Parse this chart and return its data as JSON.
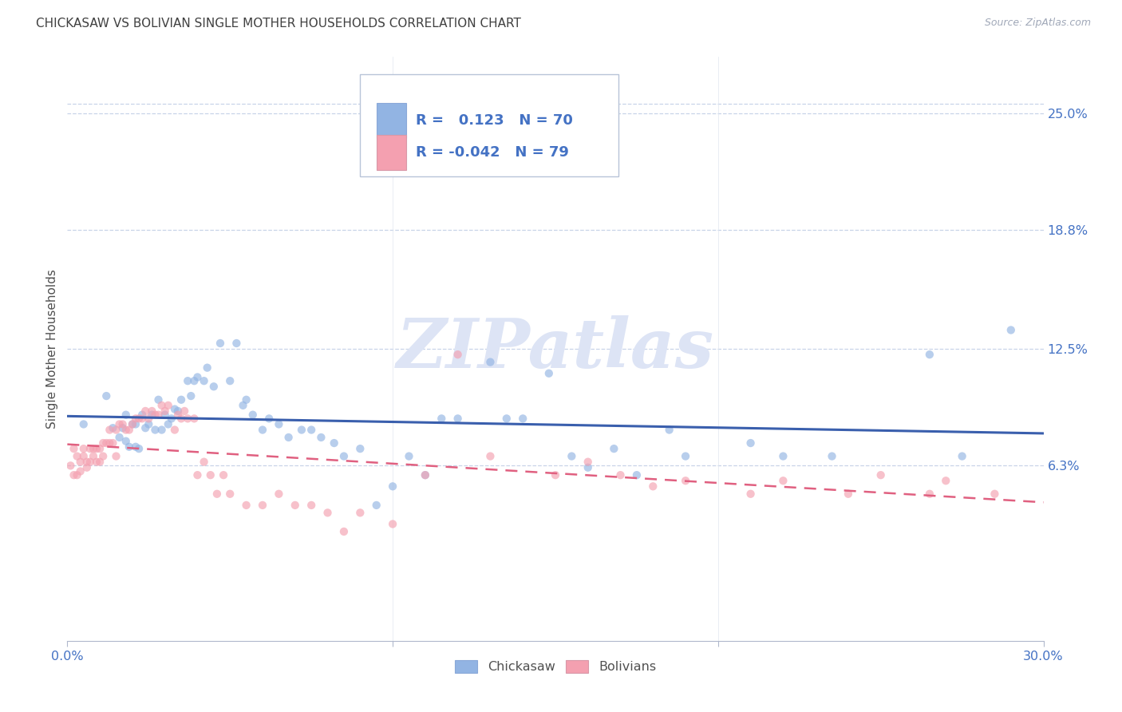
{
  "title": "CHICKASAW VS BOLIVIAN SINGLE MOTHER HOUSEHOLDS CORRELATION CHART",
  "source": "Source: ZipAtlas.com",
  "ylabel": "Single Mother Households",
  "xlim": [
    0.0,
    0.3
  ],
  "ylim": [
    -0.03,
    0.28
  ],
  "ytick_labels": [
    "6.3%",
    "12.5%",
    "18.8%",
    "25.0%"
  ],
  "ytick_positions": [
    0.063,
    0.125,
    0.188,
    0.25
  ],
  "chickasaw_R": 0.123,
  "chickasaw_N": 70,
  "bolivian_R": -0.042,
  "bolivian_N": 79,
  "chickasaw_color": "#92b4e3",
  "bolivian_color": "#f4a0b0",
  "chickasaw_line_color": "#3a5fad",
  "bolivian_line_color": "#e06080",
  "background_color": "#ffffff",
  "grid_color": "#c8d4e8",
  "title_color": "#404040",
  "axis_label_color": "#505050",
  "tick_label_color": "#4472c4",
  "watermark": "ZIPatlas",
  "watermark_color": "#dde4f5",
  "scatter_size": 55,
  "scatter_alpha": 0.65,
  "chickasaw_x": [
    0.005,
    0.012,
    0.014,
    0.016,
    0.017,
    0.018,
    0.018,
    0.019,
    0.02,
    0.021,
    0.021,
    0.022,
    0.023,
    0.024,
    0.025,
    0.026,
    0.027,
    0.028,
    0.029,
    0.03,
    0.031,
    0.032,
    0.033,
    0.034,
    0.035,
    0.037,
    0.038,
    0.039,
    0.04,
    0.042,
    0.043,
    0.045,
    0.047,
    0.05,
    0.052,
    0.054,
    0.055,
    0.057,
    0.06,
    0.062,
    0.065,
    0.068,
    0.072,
    0.075,
    0.078,
    0.082,
    0.085,
    0.09,
    0.095,
    0.1,
    0.105,
    0.11,
    0.115,
    0.12,
    0.13,
    0.135,
    0.14,
    0.148,
    0.155,
    0.16,
    0.168,
    0.175,
    0.185,
    0.19,
    0.21,
    0.22,
    0.235,
    0.265,
    0.275,
    0.29
  ],
  "chickasaw_y": [
    0.085,
    0.1,
    0.083,
    0.078,
    0.083,
    0.076,
    0.09,
    0.073,
    0.085,
    0.073,
    0.085,
    0.072,
    0.09,
    0.083,
    0.085,
    0.09,
    0.082,
    0.098,
    0.082,
    0.09,
    0.085,
    0.088,
    0.093,
    0.092,
    0.098,
    0.108,
    0.1,
    0.108,
    0.11,
    0.108,
    0.115,
    0.105,
    0.128,
    0.108,
    0.128,
    0.095,
    0.098,
    0.09,
    0.082,
    0.088,
    0.085,
    0.078,
    0.082,
    0.082,
    0.078,
    0.075,
    0.068,
    0.072,
    0.042,
    0.052,
    0.068,
    0.058,
    0.088,
    0.088,
    0.118,
    0.088,
    0.088,
    0.112,
    0.068,
    0.062,
    0.072,
    0.058,
    0.082,
    0.068,
    0.075,
    0.068,
    0.068,
    0.122,
    0.068,
    0.135
  ],
  "bolivian_x": [
    0.001,
    0.002,
    0.002,
    0.003,
    0.003,
    0.004,
    0.004,
    0.005,
    0.005,
    0.006,
    0.006,
    0.007,
    0.007,
    0.008,
    0.008,
    0.009,
    0.009,
    0.01,
    0.01,
    0.011,
    0.011,
    0.012,
    0.013,
    0.013,
    0.014,
    0.015,
    0.015,
    0.016,
    0.017,
    0.018,
    0.019,
    0.02,
    0.021,
    0.022,
    0.023,
    0.024,
    0.025,
    0.026,
    0.027,
    0.028,
    0.029,
    0.03,
    0.031,
    0.033,
    0.034,
    0.035,
    0.036,
    0.037,
    0.039,
    0.04,
    0.042,
    0.044,
    0.046,
    0.048,
    0.05,
    0.055,
    0.06,
    0.065,
    0.07,
    0.075,
    0.08,
    0.085,
    0.09,
    0.1,
    0.11,
    0.12,
    0.13,
    0.15,
    0.16,
    0.17,
    0.18,
    0.19,
    0.21,
    0.22,
    0.24,
    0.25,
    0.265,
    0.27,
    0.285
  ],
  "bolivian_y": [
    0.063,
    0.072,
    0.058,
    0.068,
    0.058,
    0.06,
    0.065,
    0.068,
    0.072,
    0.062,
    0.065,
    0.065,
    0.072,
    0.068,
    0.072,
    0.065,
    0.072,
    0.072,
    0.065,
    0.075,
    0.068,
    0.075,
    0.075,
    0.082,
    0.075,
    0.082,
    0.068,
    0.085,
    0.085,
    0.082,
    0.082,
    0.085,
    0.088,
    0.088,
    0.088,
    0.092,
    0.088,
    0.092,
    0.09,
    0.09,
    0.095,
    0.092,
    0.095,
    0.082,
    0.09,
    0.088,
    0.092,
    0.088,
    0.088,
    0.058,
    0.065,
    0.058,
    0.048,
    0.058,
    0.048,
    0.042,
    0.042,
    0.048,
    0.042,
    0.042,
    0.038,
    0.028,
    0.038,
    0.032,
    0.058,
    0.122,
    0.068,
    0.058,
    0.065,
    0.058,
    0.052,
    0.055,
    0.048,
    0.055,
    0.048,
    0.058,
    0.048,
    0.055,
    0.048
  ]
}
